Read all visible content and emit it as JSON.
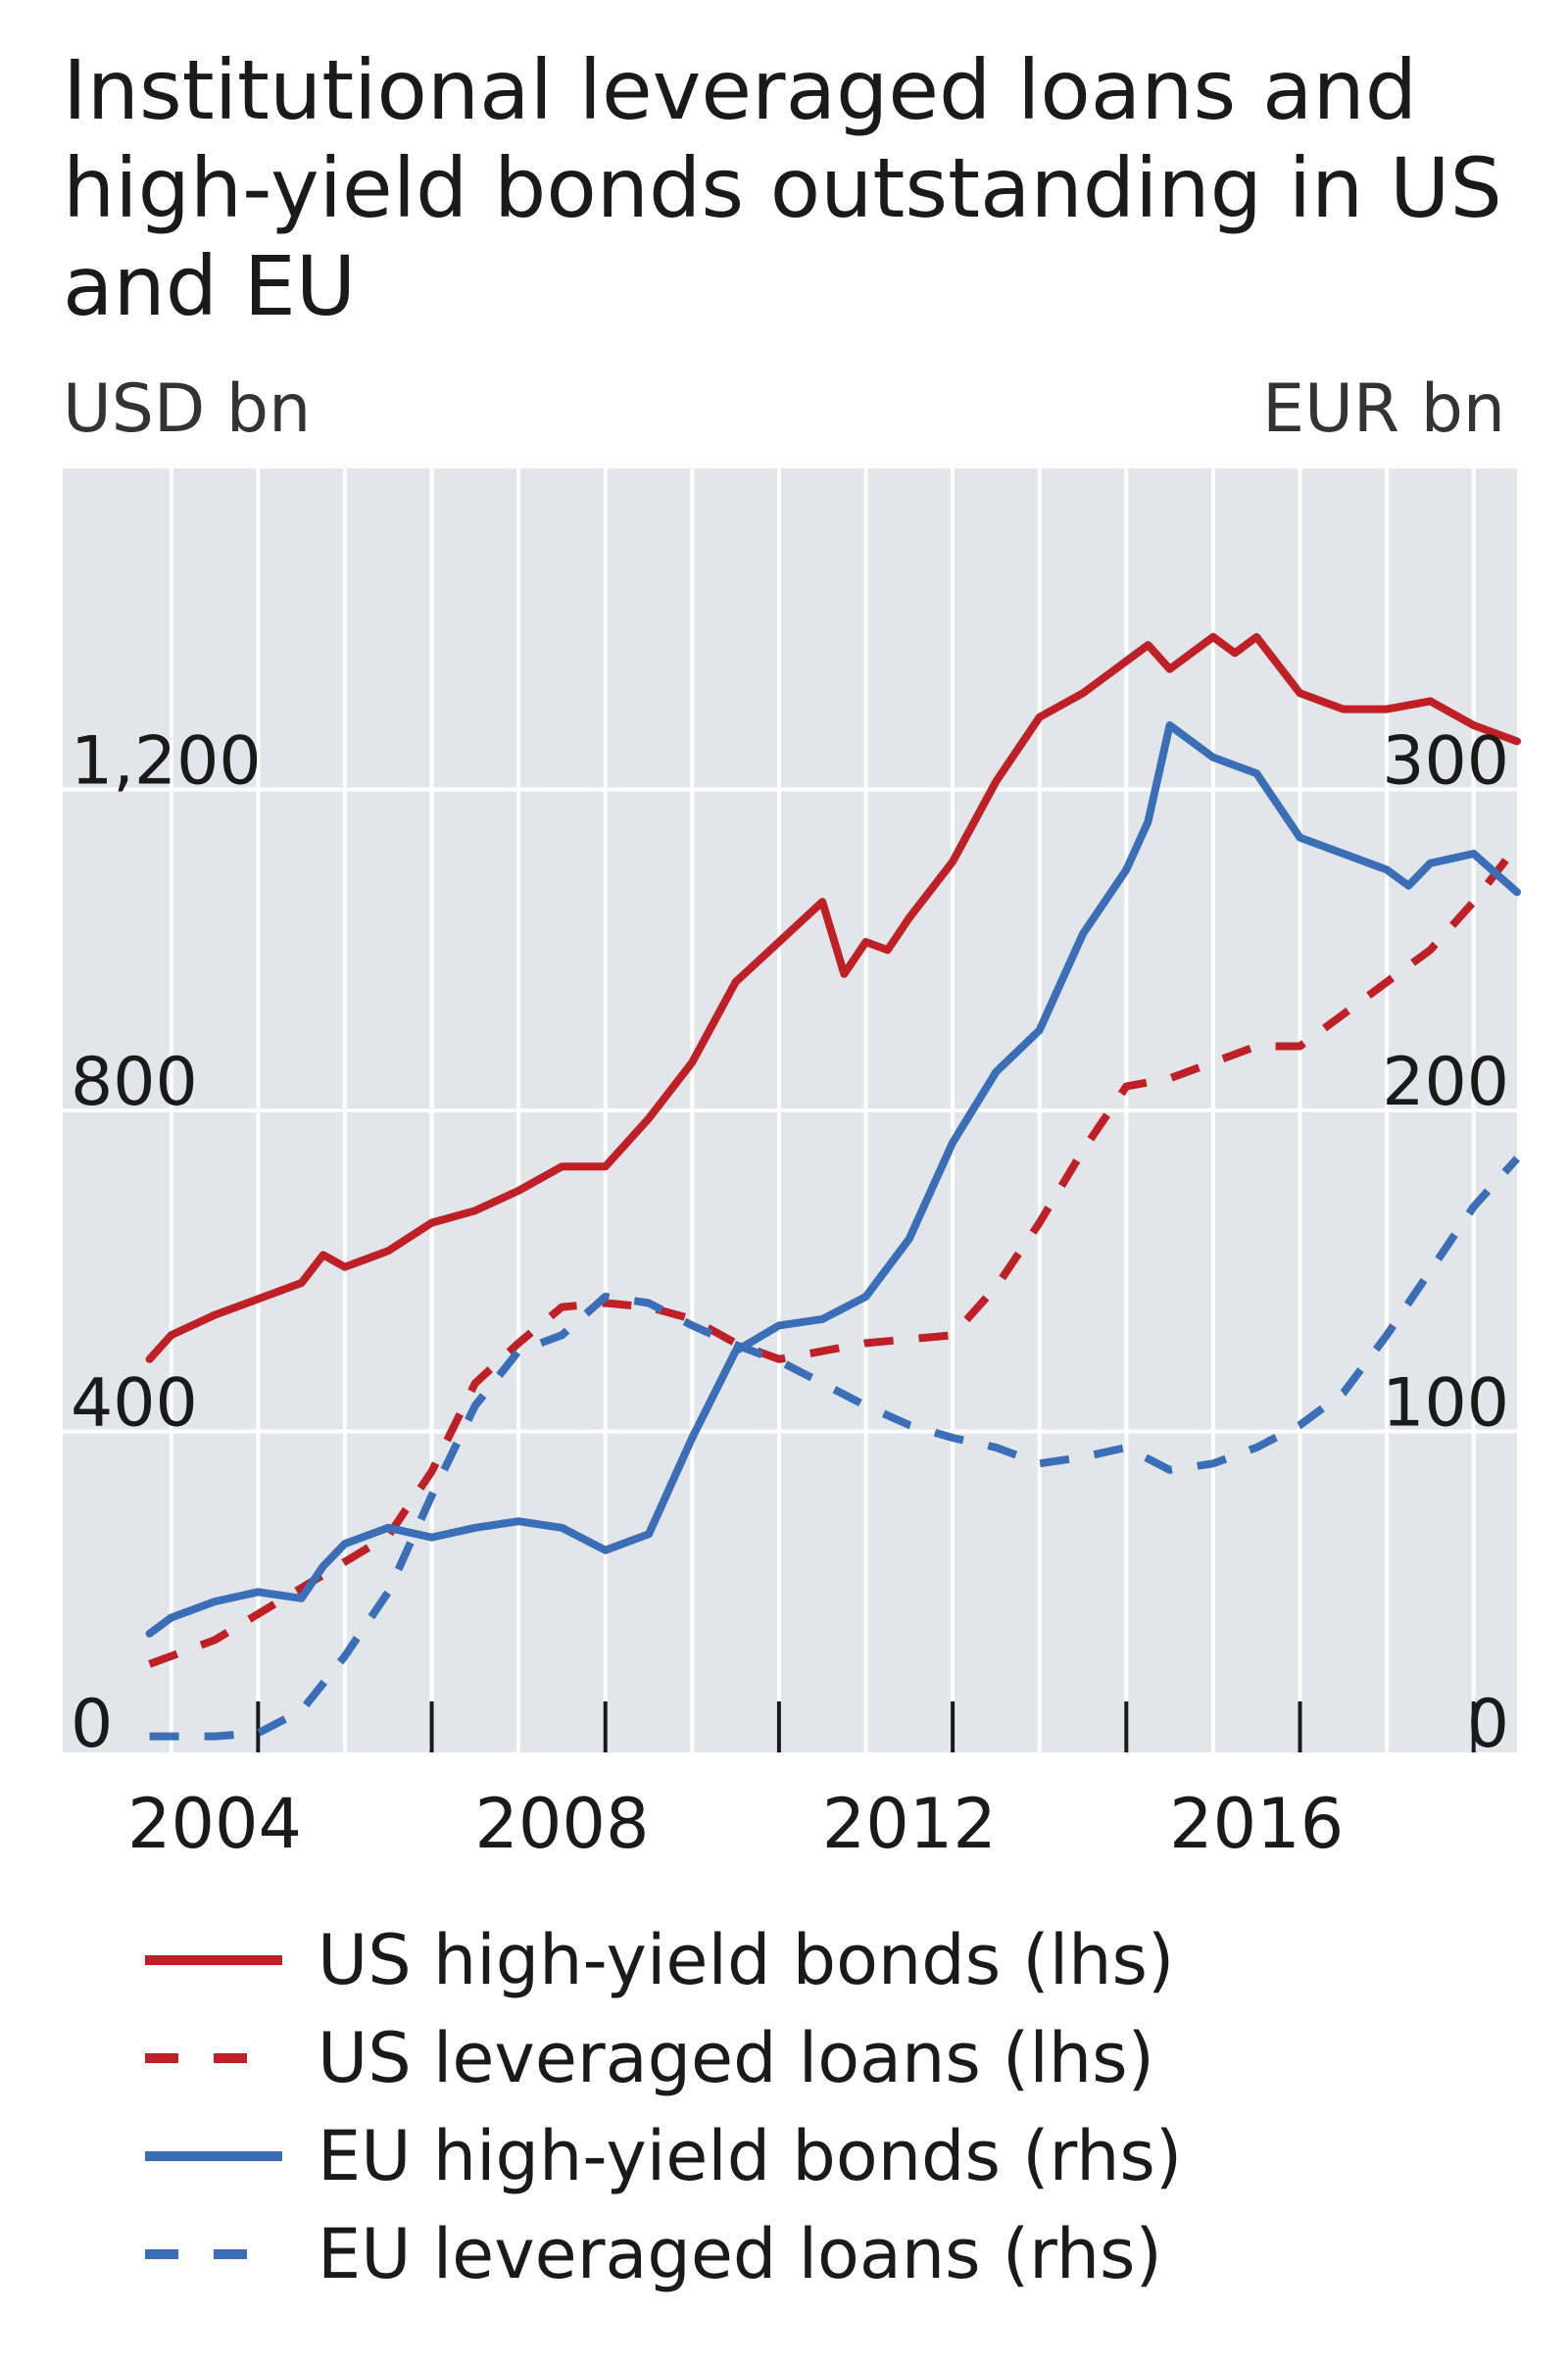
{
  "chart_data": {
    "type": "line",
    "title": "Institutional leveraged loans and high-yield bonds outstanding in US and EU",
    "y_left_label": "USD bn",
    "y_right_label": "EUR bn",
    "x_ticks": [
      "2004",
      "2008",
      "2012",
      "2016"
    ],
    "y_left_ticks": [
      "0",
      "400",
      "800",
      "1,200"
    ],
    "y_right_ticks": [
      "0",
      "100",
      "200",
      "300"
    ],
    "xlim": [
      2001.75,
      2018.5
    ],
    "ylim_left": [
      0,
      1600
    ],
    "ylim_right": [
      0,
      400
    ],
    "grid": true,
    "legend_position": "bottom",
    "colors": {
      "red": "#bf2026",
      "blue": "#3a6fb7",
      "panel": "#e2e5ea"
    },
    "series": [
      {
        "name": "US high-yield bonds (lhs)",
        "axis": "left",
        "color": "#bf2026",
        "dash": false,
        "x": [
          2002.75,
          2003.0,
          2003.5,
          2004.0,
          2004.5,
          2004.75,
          2005.0,
          2005.5,
          2006.0,
          2006.5,
          2007.0,
          2007.5,
          2008.0,
          2008.5,
          2009.0,
          2009.5,
          2010.0,
          2010.5,
          2010.75,
          2011.0,
          2011.25,
          2011.5,
          2012.0,
          2012.5,
          2013.0,
          2013.5,
          2014.0,
          2014.25,
          2014.5,
          2015.0,
          2015.25,
          2015.5,
          2016.0,
          2016.5,
          2017.0,
          2017.5,
          2018.0,
          2018.5
        ],
        "y": [
          490,
          520,
          545,
          565,
          585,
          620,
          605,
          625,
          660,
          675,
          700,
          730,
          730,
          790,
          860,
          960,
          1010,
          1060,
          970,
          1010,
          1000,
          1040,
          1110,
          1210,
          1290,
          1320,
          1360,
          1380,
          1350,
          1390,
          1370,
          1390,
          1320,
          1300,
          1300,
          1310,
          1280,
          1260
        ]
      },
      {
        "name": "US leveraged loans (lhs)",
        "axis": "left",
        "color": "#bf2026",
        "dash": true,
        "x": [
          2002.75,
          2003.5,
          2004.5,
          2005.5,
          2006.0,
          2006.5,
          2007.0,
          2007.5,
          2008.0,
          2008.5,
          2009.0,
          2009.5,
          2010.0,
          2010.5,
          2011.0,
          2011.5,
          2012.0,
          2012.5,
          2013.0,
          2013.5,
          2014.0,
          2014.5,
          2015.0,
          2015.5,
          2016.0,
          2016.5,
          2017.0,
          2017.5,
          2018.0,
          2018.5
        ],
        "y": [
          110,
          140,
          205,
          270,
          350,
          460,
          510,
          555,
          560,
          555,
          540,
          510,
          490,
          500,
          510,
          515,
          520,
          580,
          660,
          750,
          830,
          840,
          860,
          880,
          880,
          920,
          960,
          1000,
          1060,
          1130
        ]
      },
      {
        "name": "EU high-yield bonds (rhs)",
        "axis": "right",
        "color": "#3a6fb7",
        "dash": false,
        "x": [
          2002.75,
          2003.0,
          2003.5,
          2004.0,
          2004.5,
          2004.75,
          2005.0,
          2005.5,
          2006.0,
          2006.5,
          2007.0,
          2007.5,
          2008.0,
          2008.5,
          2009.0,
          2009.5,
          2010.0,
          2010.5,
          2011.0,
          2011.5,
          2012.0,
          2012.5,
          2013.0,
          2013.5,
          2014.0,
          2014.25,
          2014.5,
          2015.0,
          2015.5,
          2016.0,
          2016.5,
          2017.0,
          2017.25,
          2017.5,
          2018.0,
          2018.5
        ],
        "y": [
          37,
          42,
          47,
          50,
          48,
          58,
          65,
          70,
          67,
          70,
          72,
          70,
          63,
          68,
          98,
          125,
          133,
          135,
          142,
          160,
          190,
          212,
          225,
          255,
          275,
          290,
          320,
          310,
          305,
          285,
          280,
          275,
          270,
          277,
          280,
          268
        ]
      },
      {
        "name": "EU leveraged loans (rhs)",
        "axis": "right",
        "color": "#3a6fb7",
        "dash": true,
        "x": [
          2002.75,
          2003.5,
          2004.0,
          2004.5,
          2005.0,
          2005.5,
          2006.0,
          2006.5,
          2007.0,
          2007.5,
          2008.0,
          2008.5,
          2009.0,
          2009.5,
          2010.0,
          2010.5,
          2011.0,
          2011.5,
          2012.0,
          2012.5,
          2013.0,
          2013.5,
          2014.0,
          2014.5,
          2015.0,
          2015.5,
          2016.0,
          2016.5,
          2017.0,
          2017.5,
          2018.0,
          2018.5
        ],
        "y": [
          5,
          5,
          6,
          13,
          30,
          50,
          80,
          108,
          125,
          130,
          142,
          140,
          133,
          127,
          122,
          115,
          108,
          102,
          98,
          95,
          90,
          92,
          95,
          88,
          90,
          95,
          102,
          112,
          130,
          150,
          170,
          185
        ]
      }
    ]
  }
}
